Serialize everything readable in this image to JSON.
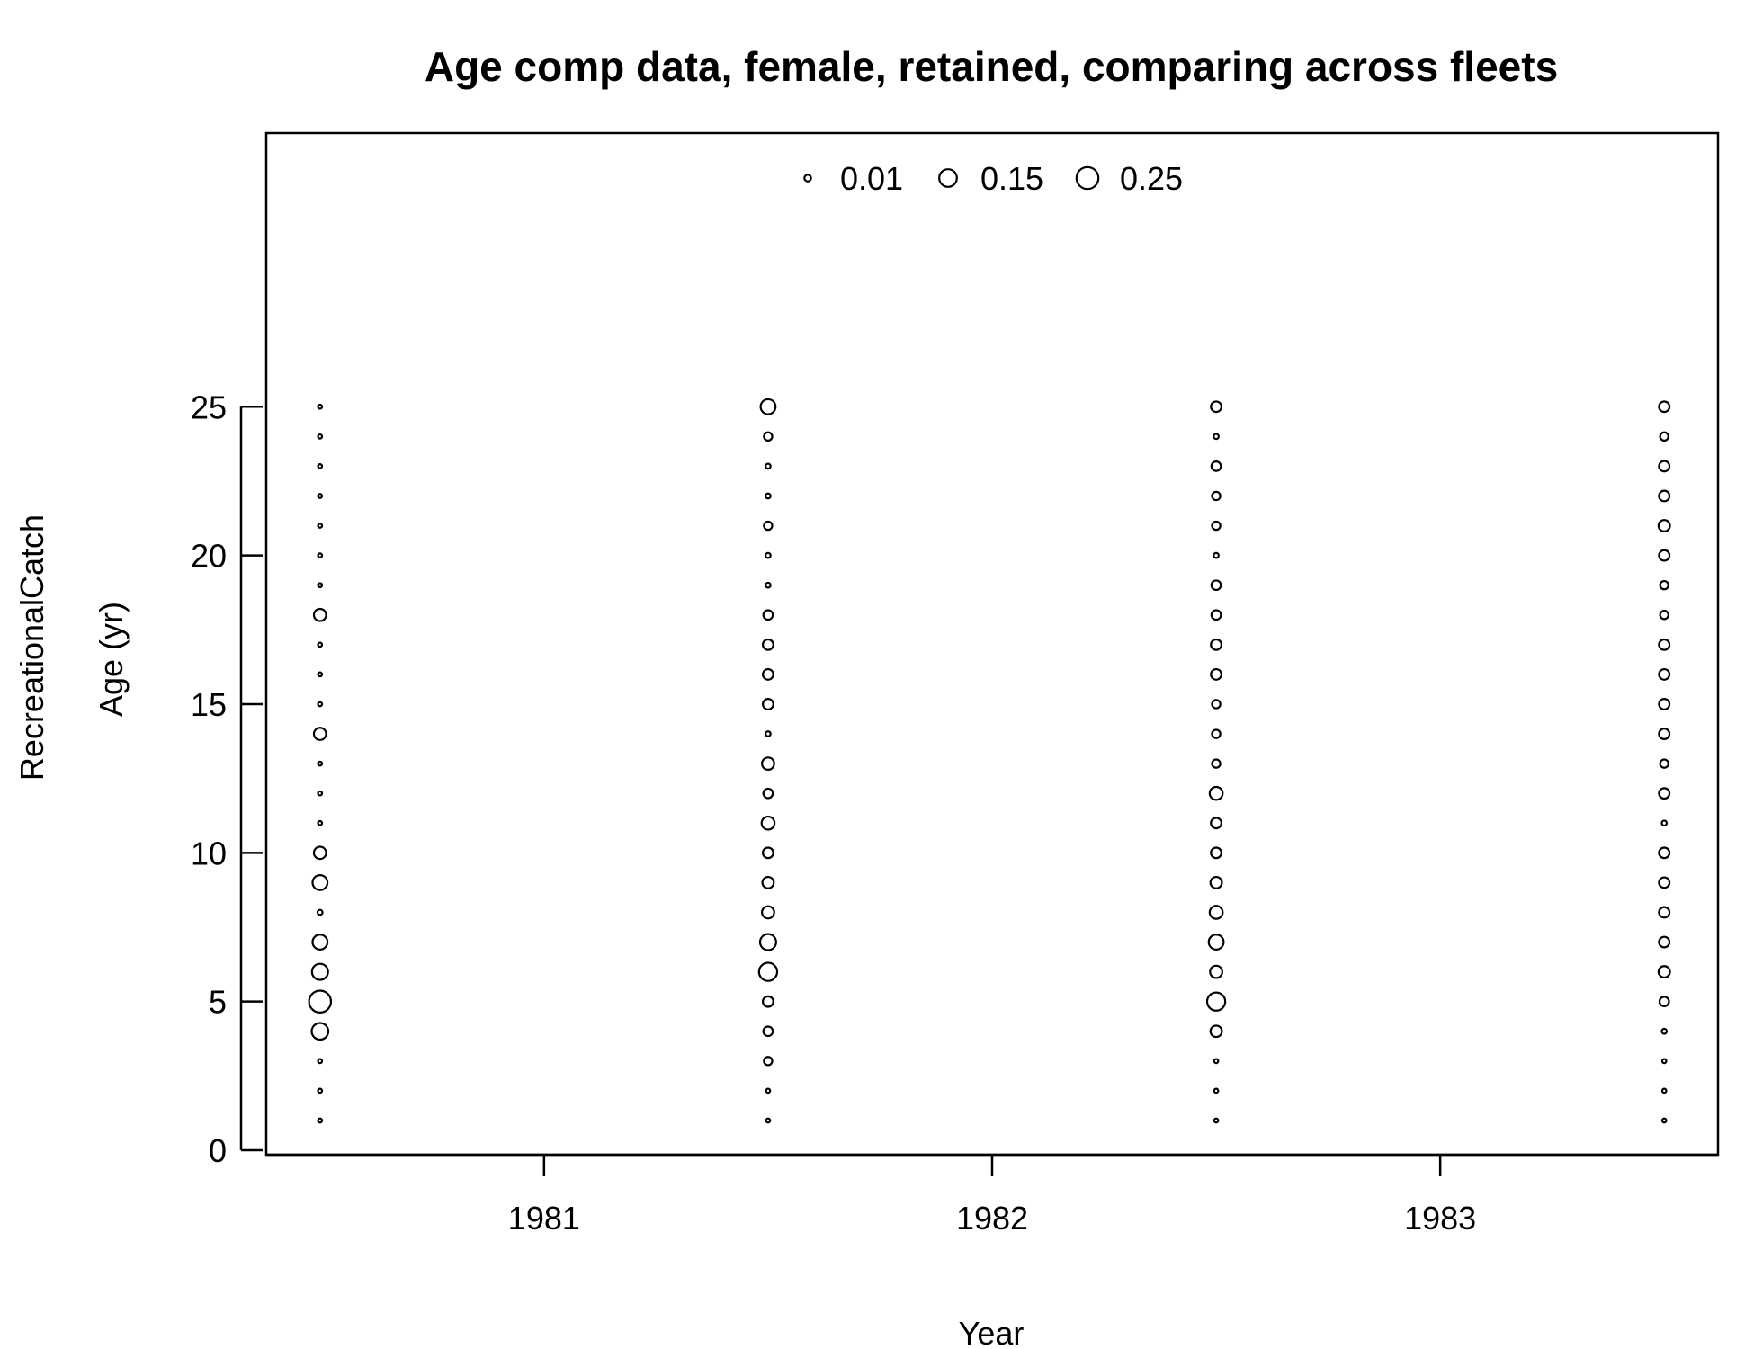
{
  "chart_data": {
    "type": "bubble",
    "title": "Age comp data, female, retained, comparing across fleets",
    "xlabel": "Year",
    "ylabel": "Age (yr)",
    "fleet_label": "RecreationalCatch",
    "xlim": [
      1980.38,
      1983.62
    ],
    "ylim": [
      -0.15,
      34.2
    ],
    "x_ticks": [
      1981,
      1982,
      1983
    ],
    "y_ticks": [
      0,
      5,
      10,
      15,
      20,
      25
    ],
    "legend": {
      "position": "top",
      "values": [
        0.01,
        0.15,
        0.25
      ],
      "labels": [
        "0.01",
        "0.15",
        "0.25"
      ]
    },
    "ages": [
      1,
      2,
      3,
      4,
      5,
      6,
      7,
      8,
      9,
      10,
      11,
      12,
      13,
      14,
      15,
      16,
      17,
      18,
      19,
      20,
      21,
      22,
      23,
      24,
      25
    ],
    "series": [
      {
        "x": 1980.5,
        "values": [
          0.001,
          0.001,
          0.001,
          0.13,
          0.25,
          0.12,
          0.1,
          0.003,
          0.1,
          0.06,
          0.001,
          0.001,
          0.001,
          0.06,
          0.001,
          0.001,
          0.001,
          0.06,
          0.001,
          0.001,
          0.001,
          0.001,
          0.001,
          0.001,
          0.001
        ]
      },
      {
        "x": 1981.5,
        "values": [
          0.001,
          0.001,
          0.02,
          0.03,
          0.04,
          0.16,
          0.12,
          0.06,
          0.05,
          0.04,
          0.07,
          0.03,
          0.06,
          0.003,
          0.04,
          0.04,
          0.04,
          0.03,
          0.003,
          0.003,
          0.02,
          0.003,
          0.003,
          0.02,
          0.1
        ]
      },
      {
        "x": 1982.5,
        "values": [
          0.001,
          0.001,
          0.001,
          0.05,
          0.16,
          0.06,
          0.1,
          0.07,
          0.05,
          0.04,
          0.04,
          0.07,
          0.02,
          0.02,
          0.02,
          0.04,
          0.04,
          0.03,
          0.03,
          0.003,
          0.02,
          0.02,
          0.03,
          0.003,
          0.04
        ]
      },
      {
        "x": 1983.5,
        "values": [
          0.001,
          0.001,
          0.001,
          0.003,
          0.03,
          0.05,
          0.04,
          0.04,
          0.04,
          0.04,
          0.003,
          0.04,
          0.02,
          0.04,
          0.04,
          0.04,
          0.04,
          0.02,
          0.02,
          0.04,
          0.05,
          0.04,
          0.04,
          0.02,
          0.04
        ]
      }
    ]
  }
}
